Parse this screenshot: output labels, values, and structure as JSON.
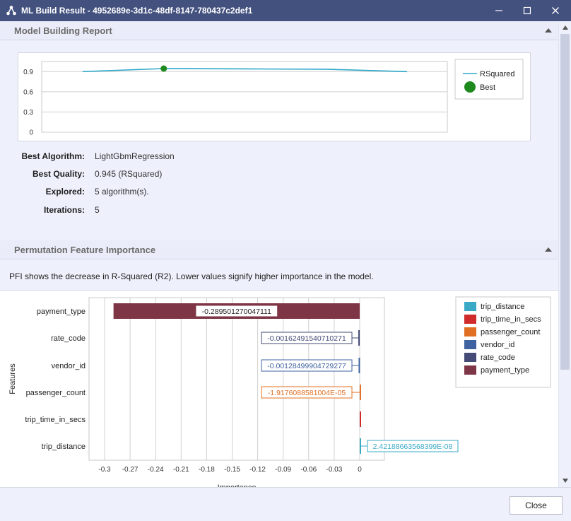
{
  "window": {
    "title": "ML Build Result - 4952689e-3d1c-48df-8147-780437c2def1"
  },
  "report": {
    "section_title": "Model Building Report",
    "best_algorithm_label": "Best Algorithm:",
    "best_algorithm_value": "LightGbmRegression",
    "best_quality_label": "Best Quality:",
    "best_quality_value": "0.945 (RSquared)",
    "explored_label": "Explored:",
    "explored_value": "5 algorithm(s).",
    "iterations_label": "Iterations:",
    "iterations_value": "5"
  },
  "pfi": {
    "section_title": "Permutation Feature Importance",
    "description": "PFI shows the decrease in R-Squared (R2). Lower values signify higher importance in the model."
  },
  "footer": {
    "close_label": "Close"
  },
  "colors": {
    "titlebar": "#43517f",
    "rsquared_line": "#2ea8c8",
    "best_marker": "#1e8a1e"
  },
  "chart_data": [
    {
      "type": "line",
      "title": "",
      "xlabel": "",
      "ylabel": "",
      "ylim": [
        0,
        1.05
      ],
      "yticks": [
        "0",
        "0.3",
        "0.6",
        "0.9"
      ],
      "series": [
        {
          "name": "RSquared",
          "values": [
            0.9,
            0.945,
            0.94,
            0.935,
            0.9
          ]
        }
      ],
      "best": {
        "name": "Best",
        "index": 1,
        "value": 0.945
      },
      "grid": true,
      "legend": "right"
    },
    {
      "type": "bar",
      "orientation": "horizontal",
      "xlabel": "Importance",
      "ylabel": "Features",
      "xlim": [
        -0.3,
        0
      ],
      "xticks": [
        "-0.3",
        "-0.27",
        "-0.24",
        "-0.21",
        "-0.18",
        "-0.15",
        "-0.12",
        "-0.09",
        "-0.06",
        "-0.03",
        "0"
      ],
      "categories": [
        "payment_type",
        "rate_code",
        "vendor_id",
        "passenger_count",
        "trip_time_in_secs",
        "trip_distance"
      ],
      "values": [
        -0.289501270047111,
        -0.00162491540710271,
        -0.00128499904729277,
        -1.9176088581004e-05,
        0,
        2.42188663568399e-08
      ],
      "labels": [
        "-0.289501270047111",
        "-0.00162491540710271",
        "-0.00128499904729277",
        "-1.9176088581004E-05",
        "",
        "2.42188663568399E-08"
      ],
      "colors": [
        "#7e3546",
        "#434b76",
        "#3f63a0",
        "#e06f23",
        "#cf2b2b",
        "#39a9c5"
      ],
      "legend_order": [
        "trip_distance",
        "trip_time_in_secs",
        "passenger_count",
        "vendor_id",
        "rate_code",
        "payment_type"
      ],
      "legend": "right",
      "grid": true
    }
  ]
}
